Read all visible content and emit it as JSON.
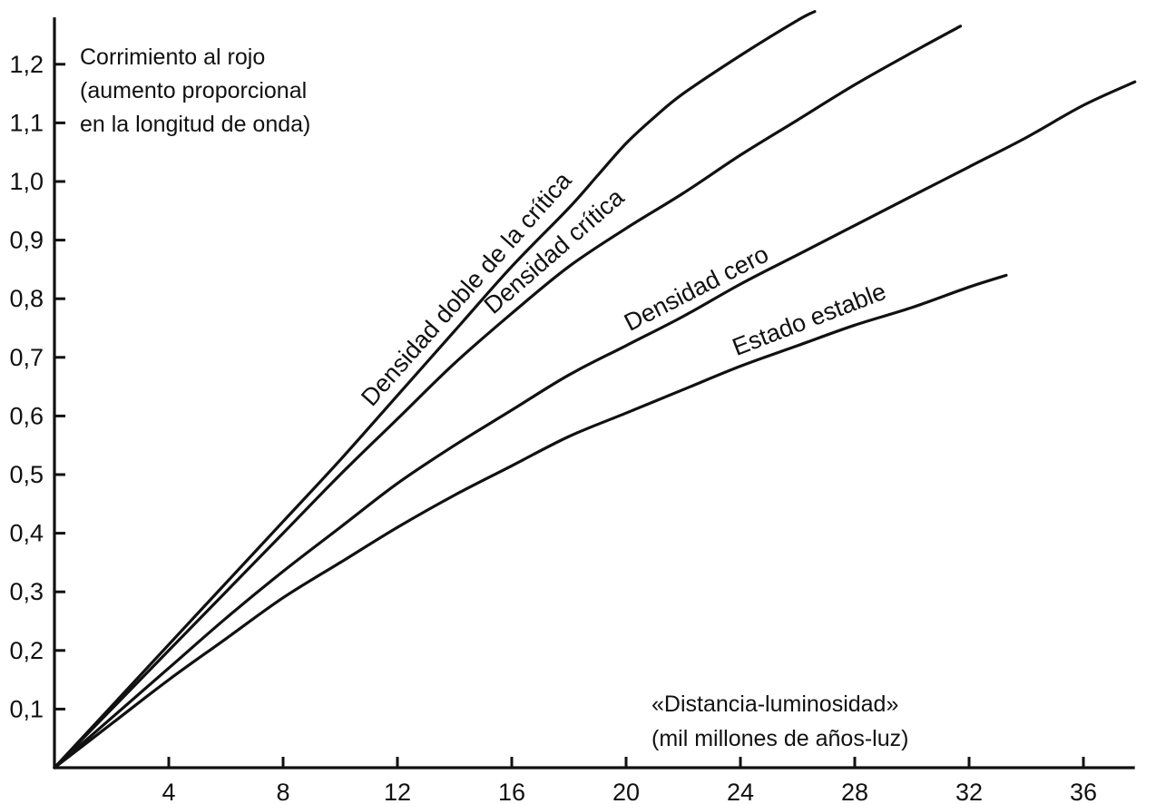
{
  "chart_data": {
    "type": "line",
    "ylabel_lines": [
      "Corrimiento al rojo",
      "(aumento proporcional",
      "en la longitud de onda)"
    ],
    "xlabel_lines": [
      "«Distancia-luminosidad»",
      "(mil millones de años-luz)"
    ],
    "x_ticks": [
      4,
      8,
      12,
      16,
      20,
      24,
      28,
      32,
      36
    ],
    "x_tick_labels": [
      "4",
      "8",
      "12",
      "16",
      "20",
      "24",
      "28",
      "32",
      "36"
    ],
    "y_ticks": [
      0.1,
      0.2,
      0.3,
      0.4,
      0.5,
      0.6,
      0.7,
      0.8,
      0.9,
      1.0,
      1.1,
      1.2
    ],
    "y_tick_labels": [
      "0,1",
      "0,2",
      "0,3",
      "0,4",
      "0,5",
      "0,6",
      "0,7",
      "0,8",
      "0,9",
      "1,0",
      "1,1",
      "1,2"
    ],
    "xlim": [
      0,
      37.8
    ],
    "ylim": [
      0,
      1.28
    ],
    "grid": false,
    "series": [
      {
        "name": "Densidad doble de la crítica",
        "x": [
          0,
          2,
          4,
          6,
          8,
          10,
          12,
          14,
          16,
          18,
          19,
          20,
          21,
          22,
          24,
          26,
          26.6
        ],
        "y": [
          0,
          0.105,
          0.21,
          0.315,
          0.42,
          0.525,
          0.635,
          0.745,
          0.855,
          0.955,
          1.01,
          1.065,
          1.11,
          1.15,
          1.215,
          1.275,
          1.29
        ]
      },
      {
        "name": "Densidad crítica",
        "x": [
          0,
          2,
          4,
          6,
          8,
          10,
          12,
          14,
          16,
          18,
          20,
          22,
          24,
          26,
          28,
          30,
          31.7
        ],
        "y": [
          0,
          0.1,
          0.2,
          0.3,
          0.4,
          0.5,
          0.595,
          0.69,
          0.775,
          0.855,
          0.92,
          0.98,
          1.045,
          1.105,
          1.165,
          1.22,
          1.265
        ]
      },
      {
        "name": "Densidad cero",
        "x": [
          0,
          2,
          4,
          6,
          8,
          10,
          12,
          14,
          16,
          18,
          20,
          22,
          24,
          26,
          28,
          30,
          32,
          34,
          36,
          37.8
        ],
        "y": [
          0,
          0.085,
          0.17,
          0.255,
          0.335,
          0.41,
          0.485,
          0.55,
          0.61,
          0.67,
          0.72,
          0.77,
          0.825,
          0.875,
          0.925,
          0.975,
          1.025,
          1.075,
          1.13,
          1.17
        ]
      },
      {
        "name": "Estado estable",
        "x": [
          0,
          2,
          4,
          6,
          8,
          10,
          12,
          14,
          16,
          18,
          20,
          22,
          24,
          26,
          28,
          30,
          32,
          33.3
        ],
        "y": [
          0,
          0.075,
          0.15,
          0.22,
          0.29,
          0.35,
          0.41,
          0.465,
          0.515,
          0.565,
          0.605,
          0.645,
          0.685,
          0.72,
          0.755,
          0.785,
          0.82,
          0.84
        ]
      }
    ],
    "series_labels": [
      {
        "text": "Densidad doble de la crítica",
        "at_x": 11.4
      },
      {
        "text": "Densidad crítica",
        "at_x": 15.6
      },
      {
        "text": "Densidad cero",
        "at_x": 20.3
      },
      {
        "text": "Estado estable",
        "at_x": 24.0
      }
    ]
  }
}
